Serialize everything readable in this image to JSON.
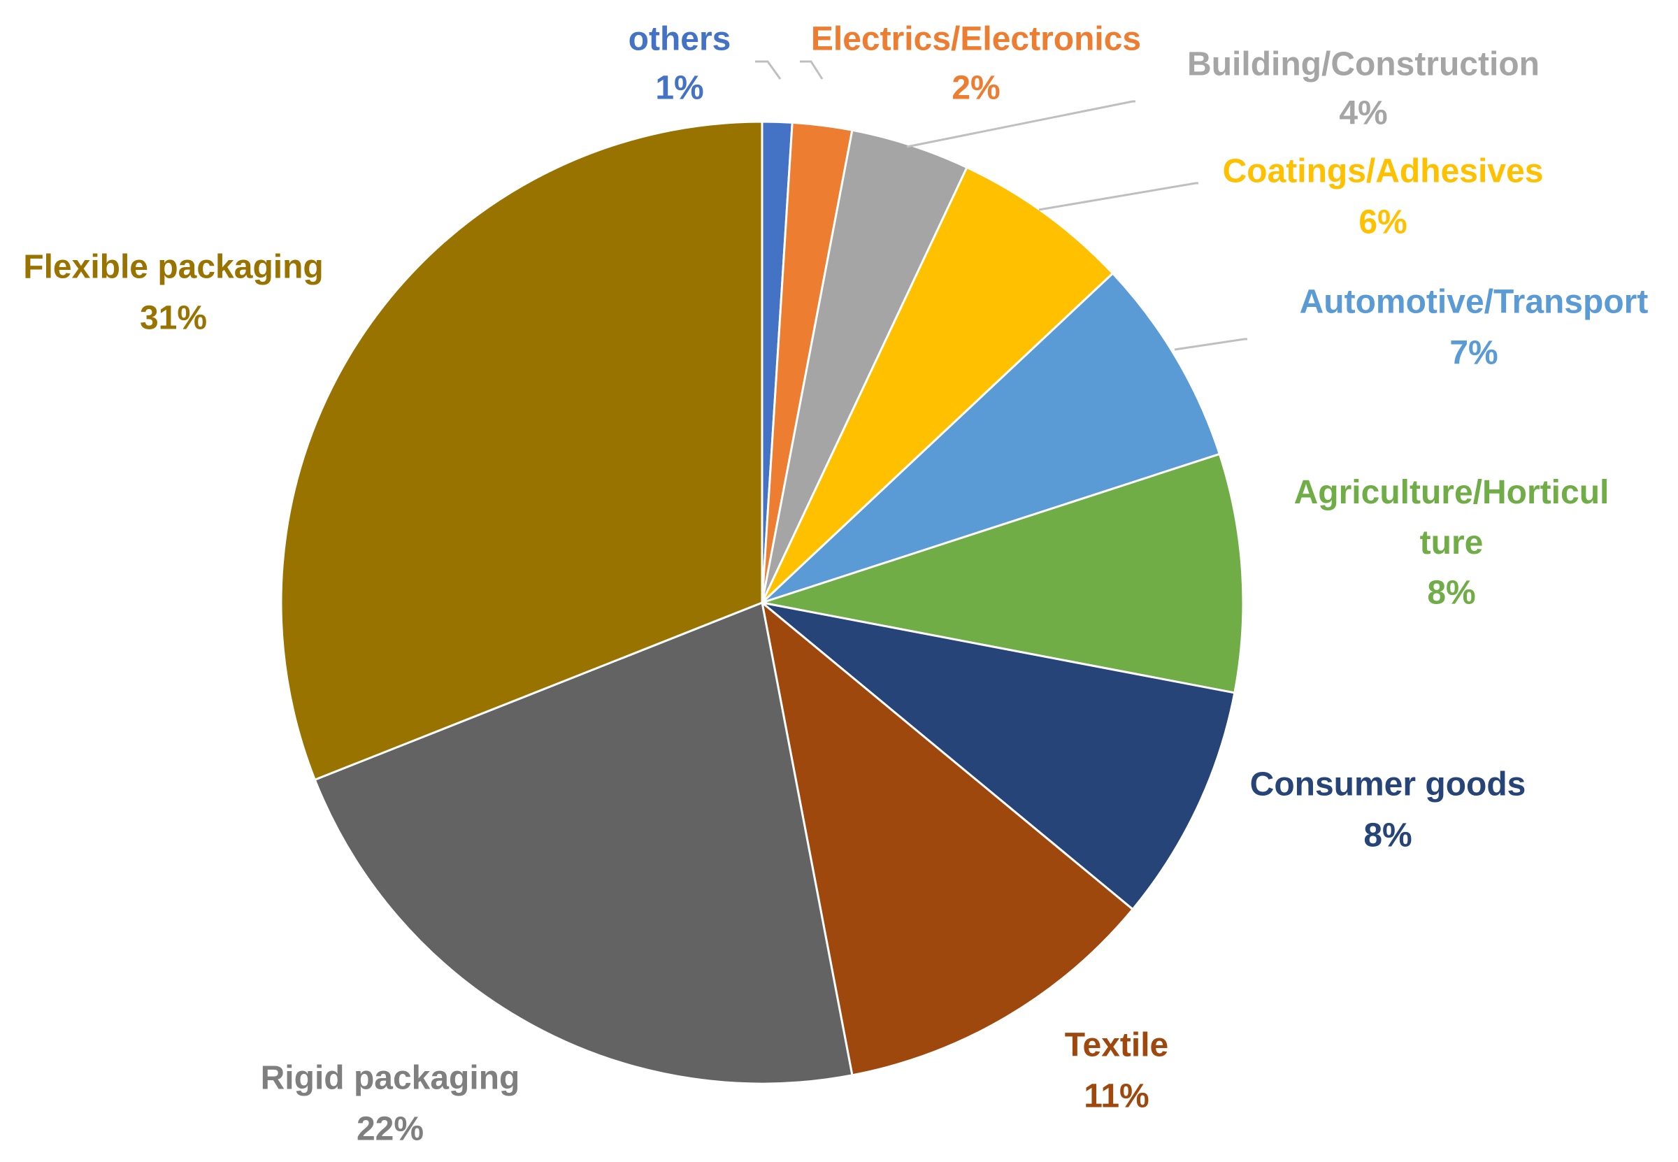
{
  "chart_data": {
    "type": "pie",
    "title": "",
    "slices": [
      {
        "label": "others",
        "value": 1,
        "value_label": "1%",
        "color": "#4472C4"
      },
      {
        "label": "Electrics/Electronics",
        "value": 2,
        "value_label": "2%",
        "color": "#ED7D31"
      },
      {
        "label": "Building/Construction",
        "value": 4,
        "value_label": "4%",
        "color": "#A5A5A5"
      },
      {
        "label": "Coatings/Adhesives",
        "value": 6,
        "value_label": "6%",
        "color": "#FFC000"
      },
      {
        "label": "Automotive/Transport",
        "value": 7,
        "value_label": "7%",
        "color": "#5B9BD5"
      },
      {
        "label": "Agriculture/Horticul ture",
        "value": 8,
        "value_label": "8%",
        "color": "#70AD47"
      },
      {
        "label": "Consumer goods",
        "value": 8,
        "value_label": "8%",
        "color": "#264478"
      },
      {
        "label": "Textile",
        "value": 11,
        "value_label": "11%",
        "color": "#9E480E"
      },
      {
        "label": "Rigid packaging",
        "value": 22,
        "value_label": "22%",
        "color": "#636363"
      },
      {
        "label": "Flexible packaging",
        "value": 31,
        "value_label": "31%",
        "color": "#997300"
      }
    ],
    "label_colors": {
      "others": "#4472C4",
      "Electrics/Electronics": "#ED7D31",
      "Building/Construction": "#A5A5A5",
      "Coatings/Adhesives": "#FFC000",
      "Automotive/Transport": "#5B9BD5",
      "Agriculture/Horticul ture": "#70AD47",
      "Consumer goods": "#264478",
      "Textile": "#9E480E",
      "Rigid packaging": "#7F7F7F",
      "Flexible packaging": "#997300"
    },
    "start_angle_deg": 0,
    "direction": "clockwise",
    "legend": "none"
  }
}
